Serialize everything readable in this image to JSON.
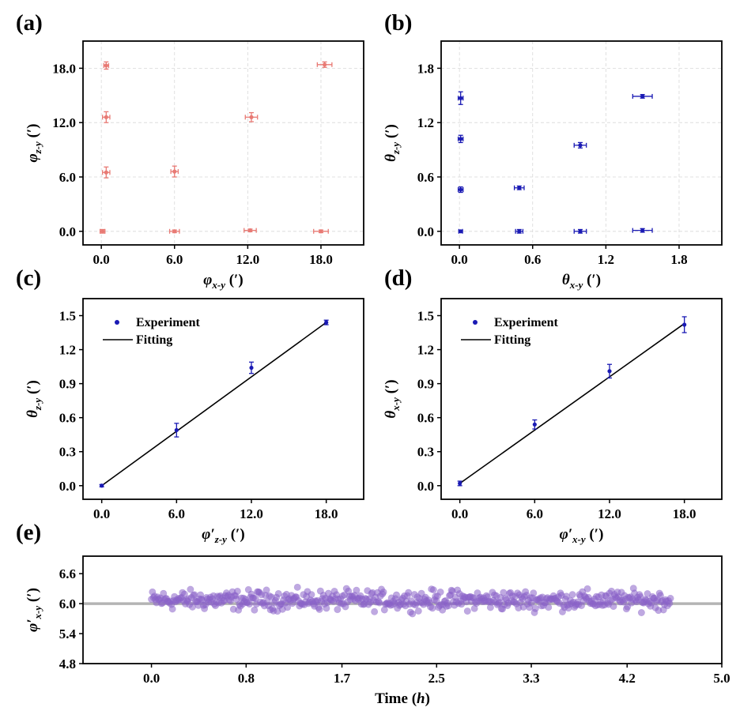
{
  "panel_labels": [
    "(a)",
    "(b)",
    "(c)",
    "(d)",
    "(e)"
  ],
  "colors": {
    "a": "#e87a74",
    "b": "#1a1ab4",
    "c": "#1a1ab4",
    "d": "#1a1ab4",
    "e": "#8a63c8",
    "fit": "#000000",
    "ref_line": "#b4b4b4",
    "grid": "#d8d8d8"
  },
  "chart_data": [
    {
      "panel": "(a)",
      "type": "scatter",
      "xlabel": {
        "main": "φ",
        "sub": "x-y",
        "unit": " (′)"
      },
      "ylabel": {
        "main": "φ",
        "sub": "z-y",
        "unit": " (′)"
      },
      "xlim": [
        -1.5,
        21.5
      ],
      "ylim": [
        -1.5,
        21
      ],
      "xticks": [
        0,
        6,
        12,
        18
      ],
      "xtick_labels": [
        "0.0",
        "6.0",
        "12.0",
        "18.0"
      ],
      "yticks": [
        0,
        6,
        12,
        18
      ],
      "ytick_labels": [
        "0.0",
        "6.0",
        "12.0",
        "18.0"
      ],
      "grid": true,
      "points": [
        {
          "x": 0.1,
          "y": 0.0,
          "xerr": 0.2,
          "yerr": 0.2
        },
        {
          "x": 0.4,
          "y": 6.5,
          "xerr": 0.3,
          "yerr": 0.6
        },
        {
          "x": 0.4,
          "y": 12.6,
          "xerr": 0.3,
          "yerr": 0.6
        },
        {
          "x": 0.4,
          "y": 18.3,
          "xerr": 0.2,
          "yerr": 0.4
        },
        {
          "x": 6.0,
          "y": 0.0,
          "xerr": 0.4,
          "yerr": 0.15
        },
        {
          "x": 6.0,
          "y": 6.6,
          "xerr": 0.3,
          "yerr": 0.6
        },
        {
          "x": 12.2,
          "y": 0.1,
          "xerr": 0.5,
          "yerr": 0.15
        },
        {
          "x": 12.3,
          "y": 12.6,
          "xerr": 0.5,
          "yerr": 0.5
        },
        {
          "x": 18.0,
          "y": 0.0,
          "xerr": 0.6,
          "yerr": 0.15
        },
        {
          "x": 18.3,
          "y": 18.4,
          "xerr": 0.6,
          "yerr": 0.3
        }
      ]
    },
    {
      "panel": "(b)",
      "type": "scatter",
      "xlabel": {
        "main": "θ",
        "sub": "x-y",
        "unit": " (′)"
      },
      "ylabel": {
        "main": "θ",
        "sub": "z-y",
        "unit": " (′)"
      },
      "xlim": [
        -0.15,
        2.15
      ],
      "ylim": [
        -0.15,
        2.1
      ],
      "xticks": [
        0,
        0.6,
        1.2,
        1.8
      ],
      "xtick_labels": [
        "0.0",
        "0.6",
        "1.2",
        "1.8"
      ],
      "yticks": [
        0,
        0.6,
        1.2,
        1.8
      ],
      "ytick_labels": [
        "0.0",
        "0.6",
        "1.2",
        "1.8"
      ],
      "grid": true,
      "points": [
        {
          "x": 0.01,
          "y": 0.0,
          "xerr": 0.015,
          "yerr": 0.01
        },
        {
          "x": 0.01,
          "y": 0.46,
          "xerr": 0.02,
          "yerr": 0.03
        },
        {
          "x": 0.01,
          "y": 1.02,
          "xerr": 0.02,
          "yerr": 0.04
        },
        {
          "x": 0.01,
          "y": 1.47,
          "xerr": 0.02,
          "yerr": 0.07
        },
        {
          "x": 0.49,
          "y": 0.0,
          "xerr": 0.03,
          "yerr": 0.02
        },
        {
          "x": 0.49,
          "y": 0.48,
          "xerr": 0.04,
          "yerr": 0.02
        },
        {
          "x": 0.99,
          "y": 0.0,
          "xerr": 0.05,
          "yerr": 0.02
        },
        {
          "x": 0.99,
          "y": 0.95,
          "xerr": 0.05,
          "yerr": 0.03
        },
        {
          "x": 1.5,
          "y": 0.01,
          "xerr": 0.08,
          "yerr": 0.02
        },
        {
          "x": 1.5,
          "y": 1.49,
          "xerr": 0.08,
          "yerr": 0.02
        }
      ]
    },
    {
      "panel": "(c)",
      "type": "scatter",
      "xlabel": {
        "main": "φ′",
        "sub": "z-y",
        "unit": " (′)"
      },
      "ylabel": {
        "main": "θ",
        "sub": "z-y",
        "unit": " (′)"
      },
      "xlim": [
        -1.5,
        21
      ],
      "ylim": [
        -0.12,
        1.65
      ],
      "xticks": [
        0,
        6,
        12,
        18
      ],
      "xtick_labels": [
        "0.0",
        "6.0",
        "12.0",
        "18.0"
      ],
      "yticks": [
        0,
        0.3,
        0.6,
        0.9,
        1.2,
        1.5
      ],
      "ytick_labels": [
        "0.0",
        "0.3",
        "0.6",
        "0.9",
        "1.2",
        "1.5"
      ],
      "grid": false,
      "legend": {
        "position": "top-left",
        "entries": [
          "Experiment",
          "Fitting"
        ]
      },
      "points": [
        {
          "x": 0,
          "y": 0.0,
          "yerr": 0.01
        },
        {
          "x": 6,
          "y": 0.49,
          "yerr": 0.06
        },
        {
          "x": 12,
          "y": 1.04,
          "yerr": 0.05
        },
        {
          "x": 18,
          "y": 1.44,
          "yerr": 0.02
        }
      ],
      "fit": {
        "x": [
          0,
          18
        ],
        "y": [
          0.0,
          1.44
        ]
      }
    },
    {
      "panel": "(d)",
      "type": "scatter",
      "xlabel": {
        "main": "φ′",
        "sub": "x-y",
        "unit": " (′)"
      },
      "ylabel": {
        "main": "θ",
        "sub": "x-y",
        "unit": " (′)"
      },
      "xlim": [
        -1.5,
        21
      ],
      "ylim": [
        -0.12,
        1.65
      ],
      "xticks": [
        0,
        6,
        12,
        18
      ],
      "xtick_labels": [
        "0.0",
        "6.0",
        "12.0",
        "18.0"
      ],
      "yticks": [
        0,
        0.3,
        0.6,
        0.9,
        1.2,
        1.5
      ],
      "ytick_labels": [
        "0.0",
        "0.3",
        "0.6",
        "0.9",
        "1.2",
        "1.5"
      ],
      "grid": false,
      "legend": {
        "position": "top-left",
        "entries": [
          "Experiment",
          "Fitting"
        ]
      },
      "points": [
        {
          "x": 0,
          "y": 0.02,
          "yerr": 0.02
        },
        {
          "x": 6,
          "y": 0.54,
          "yerr": 0.04
        },
        {
          "x": 12,
          "y": 1.01,
          "yerr": 0.06
        },
        {
          "x": 18,
          "y": 1.42,
          "yerr": 0.07
        }
      ],
      "fit": {
        "x": [
          0,
          18
        ],
        "y": [
          0.02,
          1.43
        ]
      }
    },
    {
      "panel": "(e)",
      "type": "scatter",
      "xlabel": {
        "main": "Time ",
        "sub": "",
        "unit": "",
        "italic_part": "h"
      },
      "ylabel": {
        "main": "φ′",
        "sub": "x-y",
        "unit": " (′)"
      },
      "xlim": [
        -0.6,
        5.0
      ],
      "ylim": [
        4.8,
        6.95
      ],
      "xticks": [
        0,
        0.83,
        1.67,
        2.5,
        3.33,
        4.17,
        5.0
      ],
      "xtick_labels": [
        "0.0",
        "0.8",
        "1.7",
        "2.5",
        "3.3",
        "4.2",
        "5.0"
      ],
      "yticks": [
        4.8,
        5.4,
        6.0,
        6.6
      ],
      "ytick_labels": [
        "4.8",
        "5.4",
        "6.0",
        "6.6"
      ],
      "grid": false,
      "reference_y": 6.0,
      "series": {
        "t_start": 0.0,
        "t_end": 4.55,
        "n_points": 520,
        "mean": 6.07,
        "spread": 0.14
      }
    }
  ]
}
